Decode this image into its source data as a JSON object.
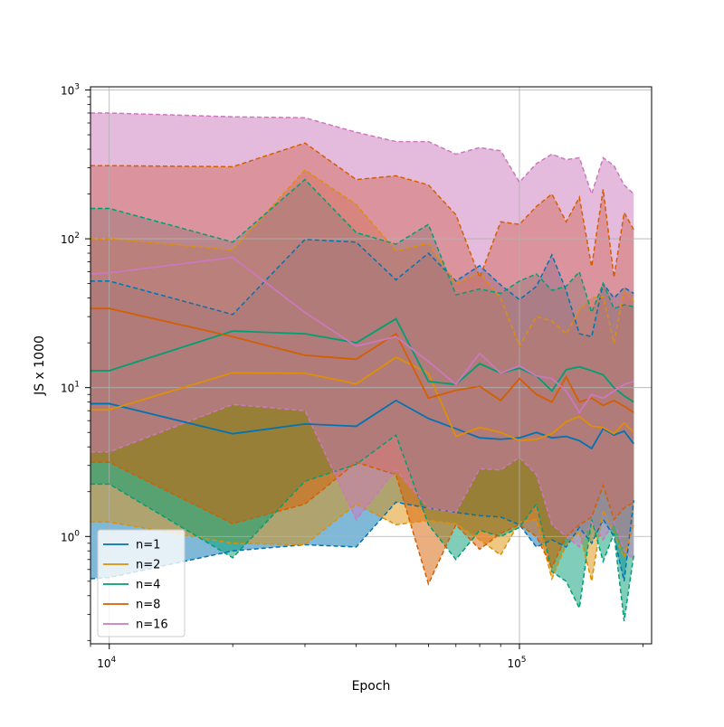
{
  "chart_data": {
    "type": "line",
    "xscale": "log",
    "yscale": "log",
    "xlabel": "Epoch",
    "ylabel": "JS x 1000",
    "xlim": [
      9000,
      210000
    ],
    "ylim": [
      0.19,
      1050
    ],
    "grid": true,
    "legend_position": "lower-left",
    "x_major_ticks": [
      {
        "value": 10000,
        "base": "10",
        "exp": "4"
      },
      {
        "value": 100000,
        "base": "10",
        "exp": "5"
      }
    ],
    "y_major_ticks": [
      {
        "value": 1,
        "base": "10",
        "exp": "0"
      },
      {
        "value": 10,
        "base": "10",
        "exp": "1"
      },
      {
        "value": 100,
        "base": "10",
        "exp": "2"
      },
      {
        "value": 1000,
        "base": "10",
        "exp": "3"
      }
    ],
    "x": [
      9000,
      10000,
      20000,
      30000,
      40000,
      50000,
      60000,
      70000,
      80000,
      90000,
      100000,
      110000,
      120000,
      130000,
      140000,
      150000,
      160000,
      170000,
      180000,
      190000
    ],
    "series": [
      {
        "name": "n=1",
        "color": "#0173b2",
        "mean": [
          7.8,
          7.8,
          4.9,
          5.7,
          5.5,
          8.2,
          6.2,
          5.3,
          4.6,
          4.5,
          4.6,
          5.0,
          4.6,
          4.7,
          4.4,
          3.9,
          5.3,
          4.8,
          5.1,
          4.2
        ],
        "upper": [
          52,
          52,
          31,
          99,
          95,
          53,
          80,
          52,
          66,
          49,
          39,
          48,
          78,
          45,
          23,
          22,
          50,
          40,
          47,
          43
        ],
        "lower": [
          0.52,
          0.53,
          0.8,
          0.88,
          0.85,
          1.7,
          1.55,
          1.45,
          1.38,
          1.35,
          1.2,
          0.85,
          0.95,
          0.85,
          1.15,
          0.9,
          1.3,
          1.0,
          0.5,
          1.75
        ]
      },
      {
        "name": "n=2",
        "color": "#de8f05",
        "mean": [
          7.1,
          7.1,
          12.6,
          12.5,
          10.6,
          16.0,
          12.5,
          4.7,
          5.4,
          5.0,
          4.4,
          4.5,
          4.9,
          5.9,
          6.4,
          5.5,
          5.4,
          4.9,
          5.8,
          5.0
        ],
        "upper": [
          100,
          100,
          84,
          290,
          170,
          83,
          93,
          50,
          59,
          40,
          19,
          30,
          28,
          23,
          33,
          40,
          41,
          20,
          45,
          38
        ],
        "lower": [
          1.25,
          1.25,
          0.9,
          0.88,
          1.65,
          1.2,
          1.28,
          1.22,
          0.95,
          0.75,
          1.25,
          1.3,
          0.52,
          0.88,
          1.08,
          0.5,
          1.5,
          1.05,
          0.72,
          1.2
        ]
      },
      {
        "name": "n=4",
        "color": "#029e73",
        "mean": [
          13.0,
          13.0,
          24.0,
          23.0,
          20.0,
          29.0,
          11.0,
          10.5,
          14.5,
          12.5,
          13.5,
          12.0,
          9.5,
          13.2,
          13.8,
          13.0,
          12.2,
          10.0,
          8.8,
          8.0
        ],
        "upper": [
          160,
          160,
          95,
          250,
          110,
          92,
          125,
          42,
          46,
          43,
          52,
          58,
          45,
          48,
          60,
          32,
          50,
          34,
          36,
          35
        ],
        "lower": [
          2.25,
          2.25,
          0.72,
          2.35,
          3.05,
          4.8,
          1.2,
          0.7,
          1.1,
          1.0,
          1.15,
          1.65,
          0.58,
          0.5,
          0.33,
          1.3,
          0.68,
          1.05,
          0.27,
          0.75
        ]
      },
      {
        "name": "n=8",
        "color": "#d55e00",
        "mean": [
          34,
          34,
          22,
          16.5,
          15.5,
          23.0,
          8.5,
          9.6,
          10.2,
          8.2,
          11.5,
          9.0,
          8.0,
          11.8,
          8.0,
          8.5,
          7.6,
          8.2,
          7.5,
          6.8
        ],
        "upper": [
          310,
          310,
          305,
          440,
          250,
          265,
          230,
          145,
          55,
          130,
          125,
          165,
          200,
          130,
          190,
          65,
          215,
          55,
          150,
          115
        ],
        "lower": [
          3.15,
          3.15,
          1.22,
          1.65,
          3.15,
          2.6,
          0.48,
          1.2,
          0.82,
          1.05,
          1.2,
          1.0,
          0.62,
          1.0,
          1.2,
          1.35,
          2.2,
          1.3,
          1.55,
          1.7
        ]
      },
      {
        "name": "n=16",
        "color": "#cc78bc",
        "mean": [
          58,
          59,
          75,
          32,
          19,
          22,
          15,
          10.5,
          17,
          12.5,
          14.0,
          12.0,
          11.5,
          9.5,
          6.8,
          9.0,
          8.5,
          9.5,
          10.5,
          11.0
        ],
        "upper": [
          700,
          700,
          660,
          650,
          520,
          450,
          450,
          370,
          410,
          390,
          240,
          320,
          370,
          340,
          350,
          200,
          350,
          310,
          230,
          200
        ],
        "lower": [
          3.7,
          3.7,
          7.7,
          7.0,
          1.3,
          2.8,
          1.55,
          1.45,
          2.85,
          2.8,
          3.4,
          2.6,
          1.2,
          1.0,
          0.85,
          1.25,
          0.95,
          1.25,
          0.8,
          0.7
        ]
      }
    ]
  }
}
